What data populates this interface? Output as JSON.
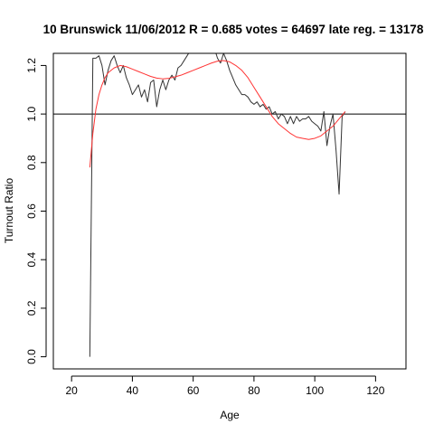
{
  "chart_data": {
    "type": "line",
    "title": "10 Brunswick 11/06/2012 R = 0.685 votes = 64697 late reg. = 13178",
    "xlabel": "Age",
    "ylabel": "Turnout Ratio",
    "xlim": [
      14,
      130
    ],
    "ylim": [
      -0.05,
      1.25
    ],
    "xticks": [
      20,
      40,
      60,
      80,
      100,
      120
    ],
    "xtick_labels": [
      "20",
      "40",
      "60",
      "80",
      "100",
      "120"
    ],
    "yticks": [
      0.0,
      0.2,
      0.4,
      0.6,
      0.8,
      1.0,
      1.2
    ],
    "ytick_labels": [
      "0.0",
      "0.2",
      "0.4",
      "0.6",
      "0.8",
      "1.0",
      "1.2"
    ],
    "grid": false,
    "reference_line_y": 1.0,
    "colors": {
      "observed": "#333333",
      "fit": "#ff3333",
      "reference": "#000000"
    },
    "series": [
      {
        "values": [
          [
            26,
            0.0
          ],
          [
            27,
            1.23
          ],
          [
            28,
            1.23
          ],
          [
            29,
            1.24
          ],
          [
            30,
            1.2
          ],
          [
            31,
            1.12
          ],
          [
            32,
            1.18
          ],
          [
            33,
            1.22
          ],
          [
            34,
            1.24
          ],
          [
            35,
            1.2
          ],
          [
            36,
            1.17
          ],
          [
            37,
            1.2
          ],
          [
            38,
            1.15
          ],
          [
            39,
            1.12
          ],
          [
            40,
            1.08
          ],
          [
            41,
            1.1
          ],
          [
            42,
            1.12
          ],
          [
            43,
            1.07
          ],
          [
            44,
            1.1
          ],
          [
            45,
            1.05
          ],
          [
            46,
            1.13
          ],
          [
            47,
            1.14
          ],
          [
            48,
            1.03
          ],
          [
            49,
            1.1
          ],
          [
            50,
            1.14
          ],
          [
            51,
            1.1
          ],
          [
            52,
            1.14
          ],
          [
            53,
            1.16
          ],
          [
            54,
            1.14
          ],
          [
            55,
            1.19
          ],
          [
            56,
            1.2
          ],
          [
            57,
            1.22
          ],
          [
            58,
            1.24
          ],
          [
            59,
            1.26
          ],
          [
            60,
            1.28
          ],
          [
            61,
            1.3
          ],
          [
            62,
            1.32
          ],
          [
            63,
            1.33
          ],
          [
            64,
            1.34
          ],
          [
            65,
            1.33
          ],
          [
            66,
            1.3
          ],
          [
            67,
            1.27
          ],
          [
            68,
            1.23
          ],
          [
            69,
            1.21
          ],
          [
            70,
            1.25
          ],
          [
            71,
            1.22
          ],
          [
            72,
            1.18
          ],
          [
            73,
            1.15
          ],
          [
            74,
            1.12
          ],
          [
            75,
            1.1
          ],
          [
            76,
            1.08
          ],
          [
            77,
            1.08
          ],
          [
            78,
            1.07
          ],
          [
            79,
            1.05
          ],
          [
            80,
            1.04
          ],
          [
            81,
            1.05
          ],
          [
            82,
            1.03
          ],
          [
            83,
            1.04
          ],
          [
            84,
            1.02
          ],
          [
            85,
            1.03
          ],
          [
            86,
            1.0
          ],
          [
            87,
            1.01
          ],
          [
            88,
            0.98
          ],
          [
            89,
            1.0
          ],
          [
            90,
            0.99
          ],
          [
            91,
            0.96
          ],
          [
            92,
            0.99
          ],
          [
            93,
            0.96
          ],
          [
            94,
            0.99
          ],
          [
            95,
            0.97
          ],
          [
            96,
            0.98
          ],
          [
            97,
            0.98
          ],
          [
            98,
            0.99
          ],
          [
            99,
            0.97
          ],
          [
            100,
            0.96
          ],
          [
            101,
            0.95
          ],
          [
            102,
            0.93
          ],
          [
            103,
            1.01
          ],
          [
            104,
            0.87
          ],
          [
            105,
            0.95
          ],
          [
            106,
            1.0
          ],
          [
            107,
            0.85
          ],
          [
            108,
            0.67
          ],
          [
            109,
            0.99
          ],
          [
            110,
            1.01
          ]
        ]
      },
      {
        "values": [
          [
            26,
            0.78
          ],
          [
            27,
            0.92
          ],
          [
            28,
            1.02
          ],
          [
            29,
            1.08
          ],
          [
            30,
            1.12
          ],
          [
            31,
            1.15
          ],
          [
            32,
            1.17
          ],
          [
            33,
            1.18
          ],
          [
            34,
            1.19
          ],
          [
            35,
            1.195
          ],
          [
            36,
            1.2
          ],
          [
            38,
            1.195
          ],
          [
            40,
            1.185
          ],
          [
            42,
            1.175
          ],
          [
            44,
            1.165
          ],
          [
            46,
            1.155
          ],
          [
            48,
            1.148
          ],
          [
            50,
            1.145
          ],
          [
            52,
            1.147
          ],
          [
            54,
            1.153
          ],
          [
            56,
            1.16
          ],
          [
            58,
            1.17
          ],
          [
            60,
            1.18
          ],
          [
            62,
            1.19
          ],
          [
            64,
            1.2
          ],
          [
            66,
            1.21
          ],
          [
            68,
            1.218
          ],
          [
            70,
            1.22
          ],
          [
            72,
            1.215
          ],
          [
            74,
            1.2
          ],
          [
            76,
            1.18
          ],
          [
            78,
            1.15
          ],
          [
            80,
            1.11
          ],
          [
            82,
            1.07
          ],
          [
            84,
            1.03
          ],
          [
            86,
            0.99
          ],
          [
            88,
            0.96
          ],
          [
            90,
            0.94
          ],
          [
            92,
            0.92
          ],
          [
            94,
            0.905
          ],
          [
            96,
            0.9
          ],
          [
            98,
            0.895
          ],
          [
            100,
            0.9
          ],
          [
            102,
            0.91
          ],
          [
            104,
            0.93
          ],
          [
            106,
            0.95
          ],
          [
            108,
            0.98
          ],
          [
            110,
            1.01
          ]
        ]
      }
    ]
  }
}
